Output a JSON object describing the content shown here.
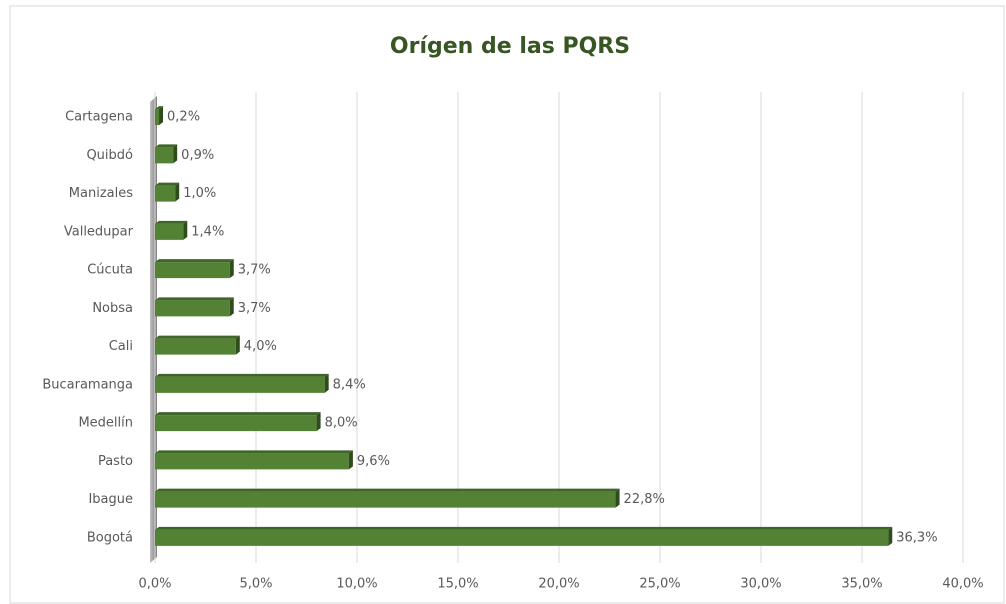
{
  "chart_data": {
    "type": "bar",
    "orientation": "horizontal",
    "title": "Orígen de las PQRS",
    "categories": [
      "Cartagena",
      "Quibdó",
      "Manizales",
      "Valledupar",
      "Cúcuta",
      "Nobsa",
      "Cali",
      "Bucaramanga",
      "Medellín",
      "Pasto",
      "Ibague",
      "Bogotá"
    ],
    "values": [
      0.2,
      0.9,
      1.0,
      1.4,
      3.7,
      3.7,
      4.0,
      8.4,
      8.0,
      9.6,
      22.8,
      36.3
    ],
    "value_labels": [
      "0,2%",
      "0,9%",
      "1,0%",
      "1,4%",
      "3,7%",
      "3,7%",
      "4,0%",
      "8,4%",
      "8,0%",
      "9,6%",
      "22,8%",
      "36,3%"
    ],
    "color": "#548235",
    "xlim": [
      0,
      40
    ],
    "xticks": [
      {
        "value": 0,
        "label": "0,0%"
      },
      {
        "value": 5,
        "label": "5,0%"
      },
      {
        "value": 10,
        "label": "10,0%"
      },
      {
        "value": 15,
        "label": "15,0%"
      },
      {
        "value": 20,
        "label": "20,0%"
      },
      {
        "value": 25,
        "label": "25,0%"
      },
      {
        "value": 30,
        "label": "30,0%"
      },
      {
        "value": 35,
        "label": "35,0%"
      },
      {
        "value": 40,
        "label": "40,0%"
      }
    ],
    "grid": true
  }
}
